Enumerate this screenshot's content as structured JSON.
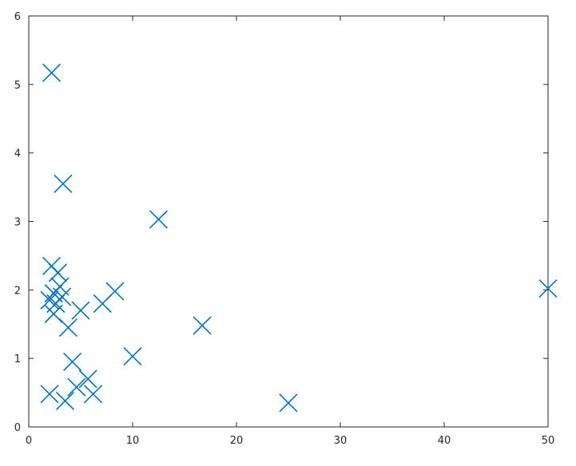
{
  "chart_data": {
    "type": "scatter",
    "title": "",
    "xlabel": "",
    "ylabel": "",
    "xlim": [
      0,
      50
    ],
    "ylim": [
      0,
      6
    ],
    "x_ticks": [
      0,
      10,
      20,
      30,
      40,
      50
    ],
    "y_ticks": [
      0,
      1,
      2,
      3,
      4,
      5,
      6
    ],
    "x_tick_labels": [
      "0",
      "10",
      "20",
      "30",
      "40",
      "50"
    ],
    "y_tick_labels": [
      "0",
      "1",
      "2",
      "3",
      "4",
      "5",
      "6"
    ],
    "grid": false,
    "legend": "none",
    "marker": "x",
    "marker_color": "#0072BD",
    "axis_color": "#262626",
    "series": [
      {
        "x": [
          2.2,
          3.3,
          12.5,
          2.2,
          2.8,
          3.0,
          2.0,
          2.4,
          2.6,
          3.2,
          8.3,
          7.1,
          5.0,
          2.4,
          3.8,
          50.0,
          16.7,
          10.0,
          4.2,
          5.7,
          4.6,
          6.2,
          2.0,
          3.5,
          25.0
        ],
        "y": [
          5.17,
          3.55,
          3.03,
          2.35,
          2.25,
          2.05,
          1.85,
          1.95,
          1.8,
          1.9,
          1.98,
          1.8,
          1.7,
          1.65,
          1.45,
          2.02,
          1.48,
          1.03,
          0.95,
          0.7,
          0.58,
          0.48,
          0.48,
          0.38,
          0.35
        ]
      }
    ]
  }
}
